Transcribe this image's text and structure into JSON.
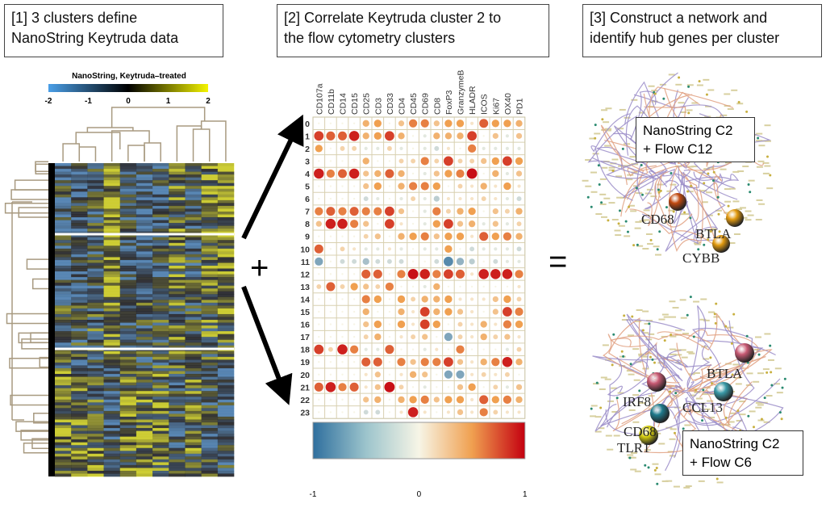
{
  "panels": {
    "p1": {
      "title_line1": "[1] 3 clusters define",
      "title_line2": "NanoString Keytruda data"
    },
    "p2": {
      "title_line1": "[2] Correlate Keytruda cluster 2 to",
      "title_line2": "the flow cytometry clusters"
    },
    "p3": {
      "title_line1": "[3] Construct a network and",
      "title_line2": "identify hub genes per cluster"
    }
  },
  "heatmap": {
    "title": "NanoString, Keytruda–treated",
    "scale_ticks": [
      "-2",
      "-1",
      "0",
      "1",
      "2"
    ],
    "colors": {
      "low": "#4a9fe8",
      "mid": "#000000",
      "high": "#f4f400"
    },
    "clusters": 3,
    "columns": 11
  },
  "operators": {
    "plus": "+",
    "equals": "="
  },
  "chart_data": {
    "type": "heatmap",
    "title": "Correlation of NanoString cluster 2 with flow cytometry clusters",
    "columns": [
      "CD107a",
      "CD11b",
      "CD14",
      "CD15",
      "CD25",
      "CD3",
      "CD33",
      "CD4",
      "CD45",
      "CD69",
      "CD8",
      "FoxP3",
      "GranzymeB",
      "HLADR",
      "ICOS",
      "Ki67",
      "OX40",
      "PD1"
    ],
    "rows": [
      "0",
      "1",
      "2",
      "3",
      "4",
      "5",
      "6",
      "7",
      "8",
      "9",
      "10",
      "11",
      "12",
      "13",
      "14",
      "15",
      "16",
      "17",
      "18",
      "19",
      "20",
      "21",
      "22",
      "23"
    ],
    "values": [
      [
        0,
        0,
        0,
        0,
        0.4,
        0.5,
        0,
        0.3,
        0.6,
        0.6,
        0.3,
        0.5,
        0.5,
        0.1,
        0.7,
        0.5,
        0.5,
        0.4
      ],
      [
        0.8,
        0.7,
        0.7,
        0.9,
        0.4,
        0.5,
        0.8,
        0.4,
        0,
        -0.1,
        0.4,
        0.4,
        0.4,
        0.8,
        0,
        0.3,
        -0.1,
        0.3
      ],
      [
        0.5,
        0,
        0.2,
        0.2,
        -0.1,
        -0.1,
        0.2,
        -0.1,
        0,
        -0.1,
        -0.2,
        0.1,
        0,
        0.6,
        -0.1,
        -0.1,
        -0.1,
        -0.1
      ],
      [
        0,
        0,
        0,
        0,
        0.4,
        0,
        0,
        0.2,
        0.2,
        0.6,
        0.2,
        0.8,
        0.2,
        0.2,
        0.3,
        0.5,
        0.8,
        0.5
      ],
      [
        0.9,
        0.6,
        0.7,
        0.9,
        0.3,
        0.4,
        0.7,
        0.4,
        0,
        -0.1,
        0.3,
        0.5,
        0.6,
        0.95,
        0,
        0.4,
        -0.1,
        0.3
      ],
      [
        0,
        0,
        0,
        0,
        0.3,
        0.5,
        0,
        0.4,
        0.6,
        0.6,
        0.5,
        0,
        0.2,
        0.1,
        0.4,
        0.1,
        0.5,
        0.1
      ],
      [
        0,
        0,
        0,
        0,
        -0.2,
        -0.1,
        0,
        -0.1,
        0.2,
        -0.1,
        -0.3,
        0.1,
        0.1,
        0.1,
        0.2,
        0.1,
        -0.1,
        -0.2
      ],
      [
        0.6,
        0.7,
        0.6,
        0.7,
        0.6,
        0.6,
        0.8,
        0.3,
        0,
        -0.1,
        0.6,
        0.2,
        0.4,
        0.5,
        0,
        0.3,
        0.2,
        0.4
      ],
      [
        0.3,
        0.9,
        0.9,
        0.6,
        0.3,
        0,
        0.8,
        0.1,
        0,
        -0.1,
        0.5,
        0.8,
        0.3,
        0.4,
        -0.1,
        0.3,
        -0.1,
        0.2
      ],
      [
        0,
        0,
        0,
        0,
        0.2,
        0.3,
        0,
        0.4,
        0.5,
        0.6,
        0.3,
        0.5,
        0.5,
        0.1,
        0.7,
        0.5,
        0.6,
        0.4
      ],
      [
        0.7,
        0,
        0.2,
        0.1,
        -0.1,
        -0.1,
        0.1,
        -0.1,
        0,
        -0.1,
        -0.1,
        0.5,
        0,
        -0.2,
        -0.1,
        -0.1,
        -0.1,
        -0.2
      ],
      [
        -0.6,
        0,
        -0.2,
        -0.2,
        -0.4,
        -0.2,
        -0.2,
        -0.2,
        0,
        0,
        -0.2,
        -0.8,
        -0.5,
        -0.3,
        0,
        -0.2,
        -0.1,
        -0.1
      ],
      [
        0,
        0,
        0,
        0,
        0.7,
        0.7,
        0,
        0.6,
        0.95,
        0.9,
        0.6,
        0.8,
        0.7,
        0.1,
        0.9,
        0.9,
        0.9,
        0.6
      ],
      [
        0.2,
        0.7,
        0.2,
        0.5,
        0.3,
        0.2,
        0.6,
        0,
        0,
        -0.1,
        0.4,
        0,
        0,
        0,
        0,
        0,
        0,
        0.1
      ],
      [
        0,
        0,
        0,
        0,
        0.6,
        0.5,
        0,
        0.5,
        0.2,
        0.4,
        0.4,
        0.5,
        0.1,
        0.1,
        0.1,
        0.3,
        0.5,
        0.2
      ],
      [
        0,
        0,
        0,
        0,
        0.4,
        0,
        0,
        0.4,
        0.1,
        0.8,
        0.4,
        0.5,
        0.3,
        0.1,
        0,
        0.3,
        0.8,
        0.6
      ],
      [
        0,
        0,
        0,
        0,
        0.3,
        0.5,
        0,
        0.5,
        0.1,
        0.8,
        0.5,
        0,
        0.2,
        0.1,
        0.4,
        0.1,
        0.6,
        0.5
      ],
      [
        0,
        0,
        0,
        0,
        0.2,
        0.4,
        0,
        0.1,
        0.2,
        0.3,
        0,
        -0.6,
        0.2,
        0.1,
        0.4,
        0.2,
        0.3,
        0.1
      ],
      [
        0.8,
        0.2,
        0.9,
        0.6,
        -0.1,
        -0.1,
        0.7,
        0,
        0,
        -0.1,
        0.1,
        0,
        0.6,
        0,
        0,
        0,
        -0.1,
        0.2
      ],
      [
        0,
        0,
        0,
        0,
        0.7,
        0.7,
        0,
        0.6,
        0.3,
        0.6,
        0.6,
        0.8,
        0.3,
        0.1,
        0.4,
        0.6,
        0.9,
        0.4
      ],
      [
        0,
        0,
        0,
        0,
        0.1,
        0.3,
        0,
        0.1,
        0.4,
        0.3,
        0,
        -0.6,
        -0.6,
        0.1,
        0.2,
        0.1,
        0.2,
        0
      ],
      [
        0.7,
        0.9,
        0.6,
        0.7,
        0.1,
        0.3,
        0.95,
        0.2,
        0,
        -0.1,
        0,
        0,
        0.3,
        0.5,
        0,
        0.2,
        -0.1,
        0.3
      ],
      [
        0,
        0,
        0,
        0,
        0.3,
        0.4,
        0,
        0.4,
        0.5,
        0.6,
        0.3,
        0.5,
        0.5,
        0.1,
        0.7,
        0.5,
        0.6,
        0.4
      ],
      [
        0,
        0,
        0,
        0,
        -0.2,
        -0.2,
        0,
        0.1,
        0.9,
        0.1,
        0,
        0.1,
        0.3,
        0.1,
        0.6,
        0.2,
        0.1,
        0.1
      ]
    ],
    "colorbar_ticks": [
      "-1",
      "0",
      "1"
    ],
    "range": [
      -1,
      1
    ],
    "colors": {
      "neg": "#2f6f9e",
      "zero": "#f7f5e6",
      "pos": "#c40010"
    }
  },
  "networks": [
    {
      "label_line1": "NanoString C2",
      "label_line2": "+ Flow C12",
      "hubs": [
        {
          "name": "CD68",
          "color": "#c24a10"
        },
        {
          "name": "BTLA",
          "color": "#e39b10"
        },
        {
          "name": "CYBB",
          "color": "#e39b10"
        }
      ]
    },
    {
      "label_line1": "NanoString C2",
      "label_line2": "+ Flow C6",
      "hubs": [
        {
          "name": "BTLA",
          "color": "#c85a74"
        },
        {
          "name": "IRF8",
          "color": "#c85a74"
        },
        {
          "name": "CCL13",
          "color": "#3a9aa8"
        },
        {
          "name": "CD68",
          "color": "#1f7a8c"
        },
        {
          "name": "TLR1",
          "color": "#d8d010"
        }
      ]
    }
  ]
}
